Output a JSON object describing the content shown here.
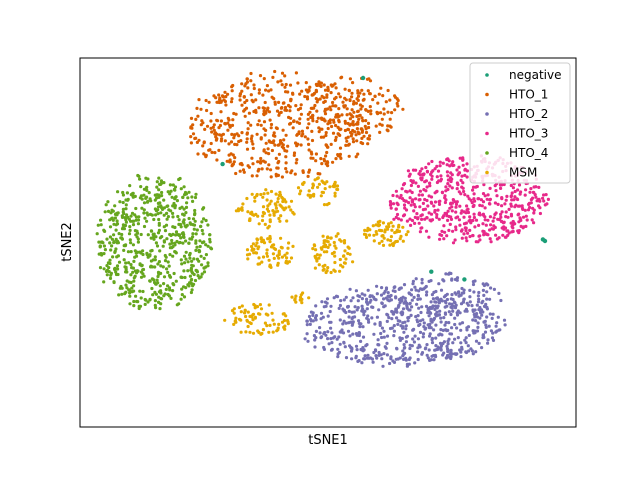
{
  "chart_data": {
    "type": "scatter",
    "title": "",
    "xlabel": "tSNE1",
    "ylabel": "tSNE2",
    "xlim": [
      -60,
      60
    ],
    "ylim": [
      -60,
      60
    ],
    "ticks_shown": false,
    "grid": false,
    "legend_position": "top-right",
    "series": [
      {
        "name": "negative",
        "color": "#1b9e77",
        "points": [
          [
            8.5,
            53.5
          ],
          [
            -25.5,
            25.5
          ],
          [
            25.0,
            -9.5
          ],
          [
            33.0,
            -12.0
          ],
          [
            52.5,
            0.5
          ],
          [
            52.0,
            1.0
          ]
        ]
      },
      {
        "name": "HTO_1",
        "color": "#d95f02",
        "clusters": [
          {
            "cx": -12,
            "cy": 38,
            "rx": 22,
            "ry": 17,
            "n": 520
          },
          {
            "cx": 6,
            "cy": 44,
            "rx": 12,
            "ry": 10,
            "n": 150
          }
        ]
      },
      {
        "name": "HTO_2",
        "color": "#7570b3",
        "clusters": [
          {
            "cx": 18,
            "cy": -27,
            "rx": 24,
            "ry": 13,
            "n": 600
          },
          {
            "cx": 28,
            "cy": -18,
            "rx": 14,
            "ry": 8,
            "n": 120
          }
        ]
      },
      {
        "name": "HTO_3",
        "color": "#e7298a",
        "clusters": [
          {
            "cx": 34,
            "cy": 14,
            "rx": 19,
            "ry": 14,
            "n": 560
          }
        ]
      },
      {
        "name": "HTO_4",
        "color": "#66a61e",
        "clusters": [
          {
            "cx": -42,
            "cy": 0,
            "rx": 14,
            "ry": 22,
            "n": 620
          }
        ]
      },
      {
        "name": "MSM",
        "color": "#e6ab02",
        "clusters": [
          {
            "cx": -15,
            "cy": 11,
            "rx": 7,
            "ry": 6,
            "n": 80
          },
          {
            "cx": -14,
            "cy": -3,
            "rx": 6,
            "ry": 5,
            "n": 70
          },
          {
            "cx": -2,
            "cy": 17,
            "rx": 5,
            "ry": 5,
            "n": 45
          },
          {
            "cx": 1,
            "cy": -4,
            "rx": 5,
            "ry": 7,
            "n": 70
          },
          {
            "cx": 14,
            "cy": 3,
            "rx": 6,
            "ry": 4,
            "n": 60
          },
          {
            "cx": -17,
            "cy": -25,
            "rx": 8,
            "ry": 5,
            "n": 75
          },
          {
            "cx": -7,
            "cy": -18,
            "rx": 3,
            "ry": 2,
            "n": 12
          }
        ]
      }
    ]
  }
}
